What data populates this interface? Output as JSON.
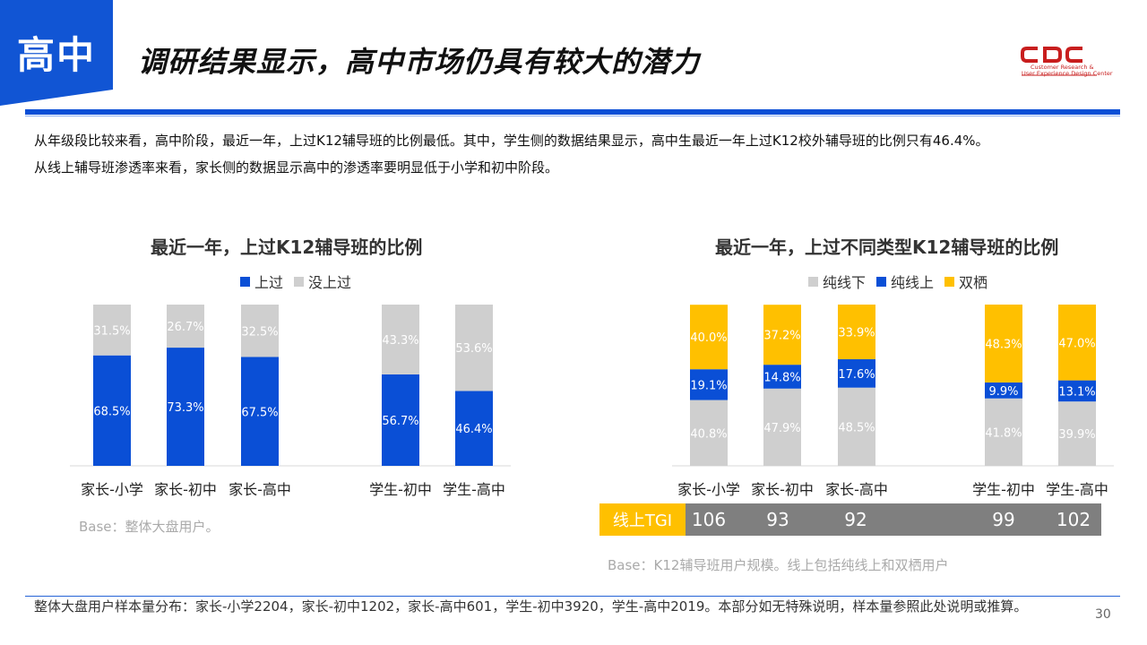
{
  "header": {
    "section_tag": "高中",
    "title": "调研结果显示，高中市场仍具有较大的潜力",
    "logo": {
      "name": "CDC",
      "line1": "Customer Research &",
      "line2": "User Experience Design Center"
    }
  },
  "description": {
    "line1": "从年级段比较来看，高中阶段，最近一年，上过K12辅导班的比例最低。其中，学生侧的数据结果显示，高中生最近一年上过K12校外辅导班的比例只有46.4%。",
    "line2": "从线上辅导班渗透率来看，家长侧的数据显示高中的渗透率要明显低于小学和初中阶段。"
  },
  "colors": {
    "blue": "#0a4fd6",
    "gray": "#cfcfcf",
    "yellow": "#ffc000",
    "tag_blue": "#1155d4"
  },
  "chart_data": [
    {
      "type": "bar",
      "stacked": true,
      "title": "最近一年，上过K12辅导班的比例",
      "categories": [
        "家长-小学",
        "家长-初中",
        "家长-高中",
        "学生-初中",
        "学生-高中"
      ],
      "series": [
        {
          "name": "上过",
          "values": [
            68.5,
            73.3,
            67.5,
            56.7,
            46.4
          ],
          "labels": [
            "68.5%",
            "73.3%",
            "67.5%",
            "56.7%",
            "46.4%"
          ]
        },
        {
          "name": "没上过",
          "values": [
            31.5,
            26.7,
            32.5,
            43.3,
            53.6
          ],
          "labels": [
            "31.5%",
            "26.7%",
            "32.5%",
            "43.3%",
            "53.6%"
          ]
        }
      ],
      "ylim": [
        0,
        100
      ],
      "legend": "top",
      "base": "Base：整体大盘用户。"
    },
    {
      "type": "bar",
      "stacked": true,
      "title": "最近一年，上过不同类型K12辅导班的比例",
      "categories": [
        "家长-小学",
        "家长-初中",
        "家长-高中",
        "学生-初中",
        "学生-高中"
      ],
      "series": [
        {
          "name": "纯线下",
          "values": [
            40.8,
            47.9,
            48.5,
            41.8,
            39.9
          ],
          "labels": [
            "40.8%",
            "47.9%",
            "48.5%",
            "41.8%",
            "39.9%"
          ]
        },
        {
          "name": "纯线上",
          "values": [
            19.1,
            14.8,
            17.6,
            9.9,
            13.1
          ],
          "labels": [
            "19.1%",
            "14.8%",
            "17.6%",
            "9.9%",
            "13.1%"
          ]
        },
        {
          "name": "双栖",
          "values": [
            40.0,
            37.2,
            33.9,
            48.3,
            47.0
          ],
          "labels": [
            "40.0%",
            "37.2%",
            "33.9%",
            "48.3%",
            "47.0%"
          ]
        }
      ],
      "ylim": [
        0,
        100
      ],
      "legend": "top",
      "tgi": {
        "label": "线上TGI",
        "values": [
          "106",
          "93",
          "92",
          "99",
          "102"
        ]
      },
      "base": "Base：K12辅导班用户规模。线上包括纯线上和双栖用户"
    }
  ],
  "footer": {
    "note": "整体大盘用户样本量分布：家长-小学2204，家长-初中1202，家长-高中601，学生-初中3920，学生-高中2019。本部分如无特殊说明，样本量参照此处说明或推算。",
    "page": "30"
  }
}
